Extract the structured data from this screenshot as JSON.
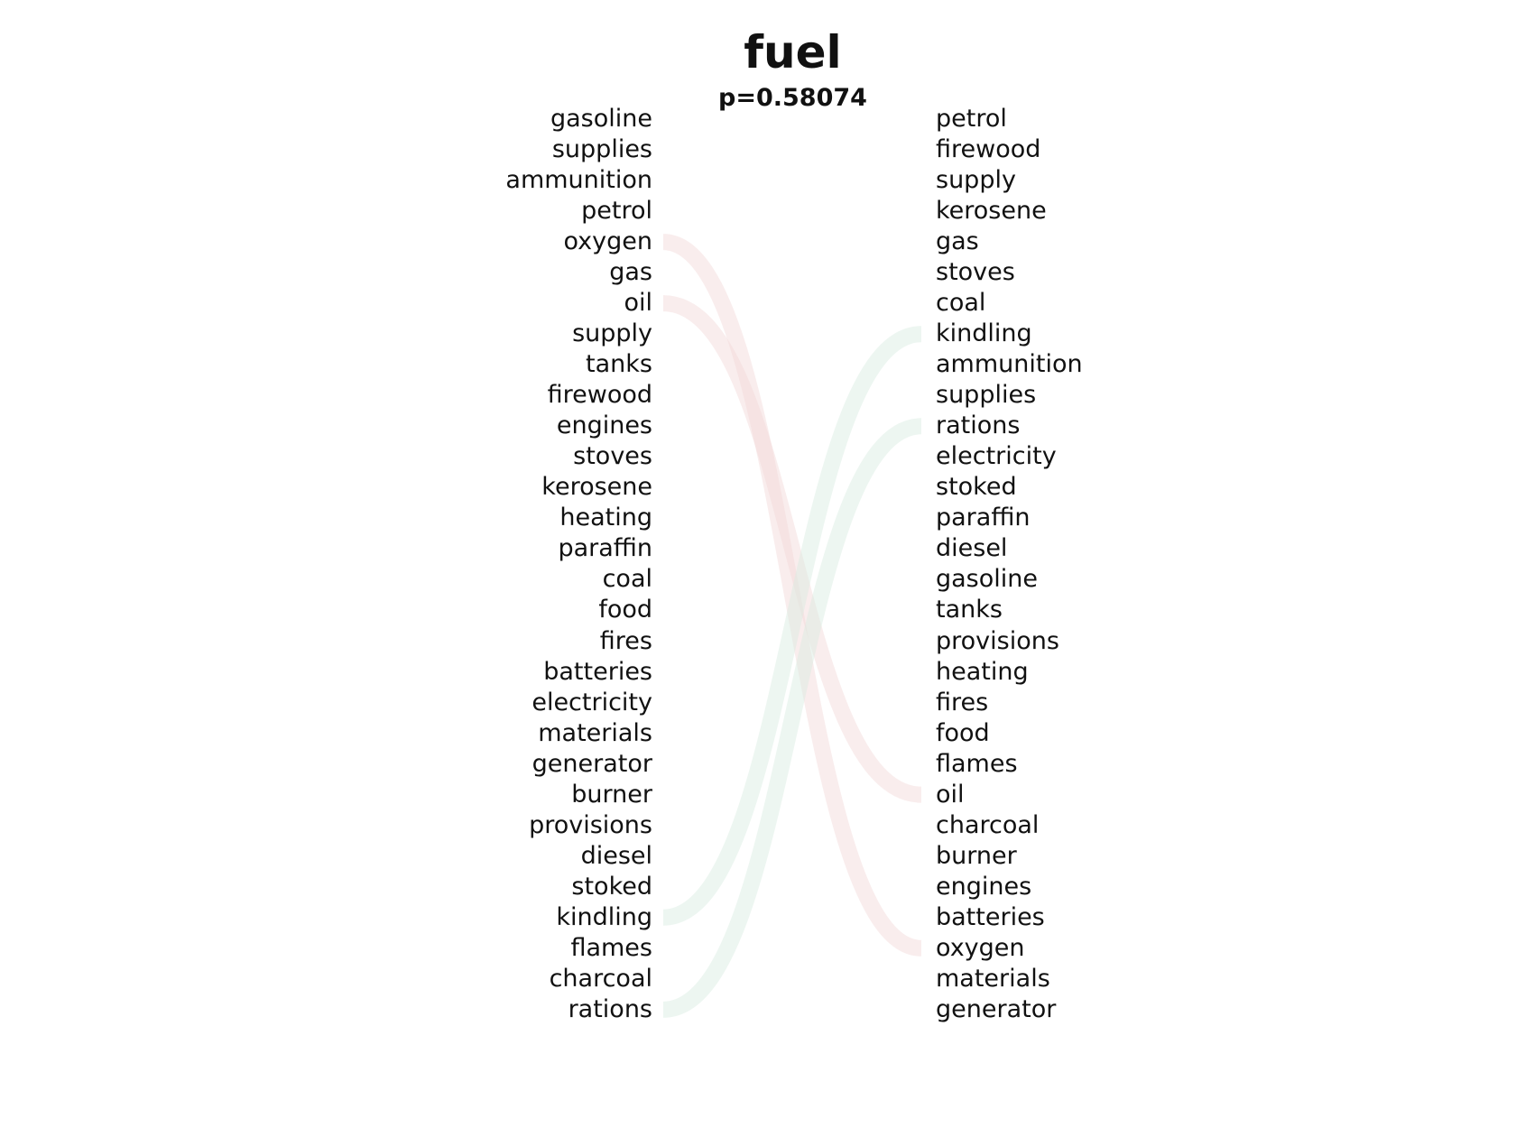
{
  "title": "fuel",
  "subtitle": "p=0.58074",
  "left_words": [
    "gasoline",
    "supplies",
    "ammunition",
    "petrol",
    "oxygen",
    "gas",
    "oil",
    "supply",
    "tanks",
    "firewood",
    "engines",
    "stoves",
    "kerosene",
    "heating",
    "paraffin",
    "coal",
    "food",
    "fires",
    "batteries",
    "electricity",
    "materials",
    "generator",
    "burner",
    "provisions",
    "diesel",
    "stoked",
    "kindling",
    "flames",
    "charcoal",
    "rations"
  ],
  "right_words": [
    "petrol",
    "firewood",
    "supply",
    "kerosene",
    "gas",
    "stoves",
    "coal",
    "kindling",
    "ammunition",
    "supplies",
    "rations",
    "electricity",
    "stoked",
    "paraffin",
    "diesel",
    "gasoline",
    "tanks",
    "provisions",
    "heating",
    "fires",
    "food",
    "flames",
    "oil",
    "charcoal",
    "burner",
    "engines",
    "batteries",
    "oxygen",
    "materials",
    "generator"
  ],
  "links": [
    {
      "from": "oxygen",
      "to": "oxygen",
      "color": "#f2d6d6"
    },
    {
      "from": "oil",
      "to": "oil",
      "color": "#f2d6d6"
    },
    {
      "from": "kindling",
      "to": "kindling",
      "color": "#d6ebe0"
    },
    {
      "from": "rations",
      "to": "rations",
      "color": "#d6ebe0"
    }
  ]
}
